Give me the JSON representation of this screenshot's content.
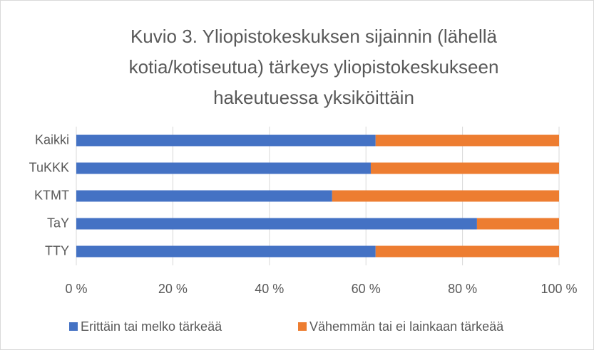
{
  "chart_data": {
    "type": "stacked_barh",
    "title": "Kuvio 3. Yliopistokeskuksen sijainnin (lähellä kotia/kotiseutua) tärkeys yliopistokeskukseen hakeutuessa yksiköittäin",
    "categories": [
      "Kaikki",
      "TuKKK",
      "KTMT",
      "TaY",
      "TTY"
    ],
    "series": [
      {
        "name": "Erittäin tai melko tärkeää",
        "color": "#4472c4",
        "values": [
          62,
          61,
          53,
          83,
          62
        ]
      },
      {
        "name": "Vähemmän tai ei lainkaan tärkeää",
        "color": "#ed7d31",
        "values": [
          38,
          39,
          47,
          17,
          38
        ]
      }
    ],
    "xlim": [
      0,
      100
    ],
    "xticks": [
      {
        "value": 0,
        "label": "0 %"
      },
      {
        "value": 20,
        "label": "20 %"
      },
      {
        "value": 40,
        "label": "40 %"
      },
      {
        "value": 60,
        "label": "60 %"
      },
      {
        "value": 80,
        "label": "80 %"
      },
      {
        "value": 100,
        "label": "100 %"
      }
    ],
    "grid": true,
    "legend": "bottom"
  }
}
